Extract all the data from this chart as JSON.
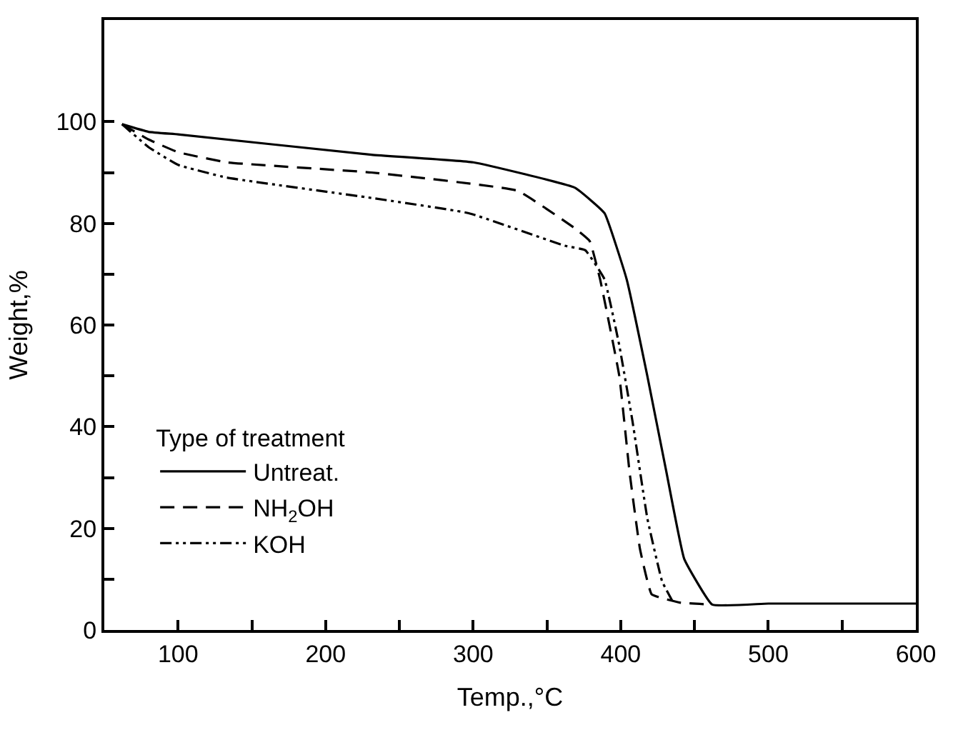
{
  "chart_data": {
    "type": "line",
    "xlabel": "Temp.,°C",
    "ylabel": "Weight,%",
    "legend_title": "Type of treatment",
    "legend": "bottom left",
    "xlim": [
      50,
      600
    ],
    "ylim": [
      0,
      120
    ],
    "xticks": [
      100,
      {
        "value": 150,
        "label": null
      },
      200,
      {
        "value": 250,
        "label": null
      },
      300,
      {
        "value": 350,
        "label": null
      },
      400,
      {
        "value": 450,
        "label": null
      },
      500,
      {
        "value": 550,
        "label": null
      },
      600
    ],
    "yticks": [
      0,
      {
        "value": 10,
        "label": null
      },
      20,
      {
        "value": 30,
        "label": null
      },
      40,
      {
        "value": 50,
        "label": null
      },
      60,
      {
        "value": 70,
        "label": null
      },
      80,
      {
        "value": 90,
        "label": null
      },
      100
    ],
    "series": [
      {
        "name": "Untreat.",
        "color": "#000000",
        "line_style": "solid",
        "x": [
          62,
          80,
          100,
          231,
          300,
          369,
          389,
          404,
          418,
          431,
          443,
          462,
          500,
          600
        ],
        "values": [
          99.5,
          98,
          97.5,
          93.5,
          92,
          87,
          82,
          69,
          50,
          31,
          14,
          5,
          5.2,
          5.2
        ]
      },
      {
        "name": "NH$_{2}$OH",
        "color": "#000000",
        "line_style": "dashed",
        "x": [
          62,
          80,
          100,
          133,
          231,
          330,
          369,
          379,
          386,
          399,
          406,
          413,
          421,
          440,
          462
        ],
        "values": [
          99.5,
          96.5,
          94,
          92,
          90,
          86.4,
          79,
          76.5,
          69,
          50,
          31,
          16,
          7,
          5.4,
          5
        ]
      },
      {
        "name": "KOH",
        "color": "#000000",
        "line_style": "dotted",
        "x": [
          62,
          80,
          100,
          133,
          231,
          297,
          362,
          376,
          389,
          399,
          408,
          418,
          428,
          435
        ],
        "values": [
          99.5,
          95,
          91.5,
          89,
          85,
          82,
          75.6,
          74.7,
          69,
          56,
          41,
          22,
          9.6,
          5.7
        ]
      }
    ]
  }
}
